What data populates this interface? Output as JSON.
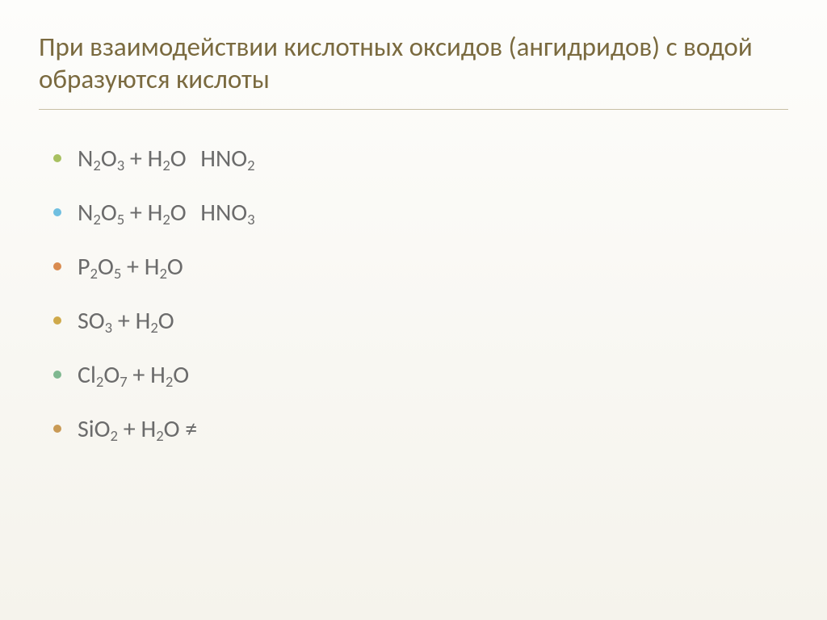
{
  "title": "При взаимодействии кислотных оксидов (ангидридов) с водой образуются кислоты",
  "title_color": "#7a6a3f",
  "title_fontsize": 33,
  "body_color": "#6b6b6b",
  "body_fontsize": 30,
  "background_top": "#fdfdfb",
  "background_bottom": "#f5f3ec",
  "bullet_colors": [
    "#a8c060",
    "#6fbfe0",
    "#d98b4f",
    "#cfa94a",
    "#7fb890",
    "#c99a55"
  ],
  "equations": [
    {
      "tokens": [
        "N",
        "_2",
        "O",
        "_3",
        " + ",
        "H",
        "_2",
        "O",
        " ",
        "→",
        " ",
        "HNO",
        "_2"
      ]
    },
    {
      "tokens": [
        "N",
        "_2",
        "O",
        "_5",
        " + ",
        "H",
        "_2",
        "O",
        " ",
        "→",
        " ",
        "HNO",
        "_3"
      ]
    },
    {
      "tokens": [
        "P",
        "_2",
        "O",
        "_5",
        " + ",
        "H",
        "_2",
        "O",
        " ",
        "→"
      ]
    },
    {
      "tokens": [
        "SO",
        "_3",
        " + ",
        "H",
        "_2",
        "O",
        " ",
        "→"
      ]
    },
    {
      "tokens": [
        "Cl",
        "_2",
        "O",
        "_7",
        " + ",
        "H",
        "_2",
        "O",
        " ",
        "→"
      ]
    },
    {
      "tokens": [
        "SiO",
        "_2",
        " + ",
        "H",
        "_2",
        "O",
        " ≠"
      ]
    }
  ]
}
